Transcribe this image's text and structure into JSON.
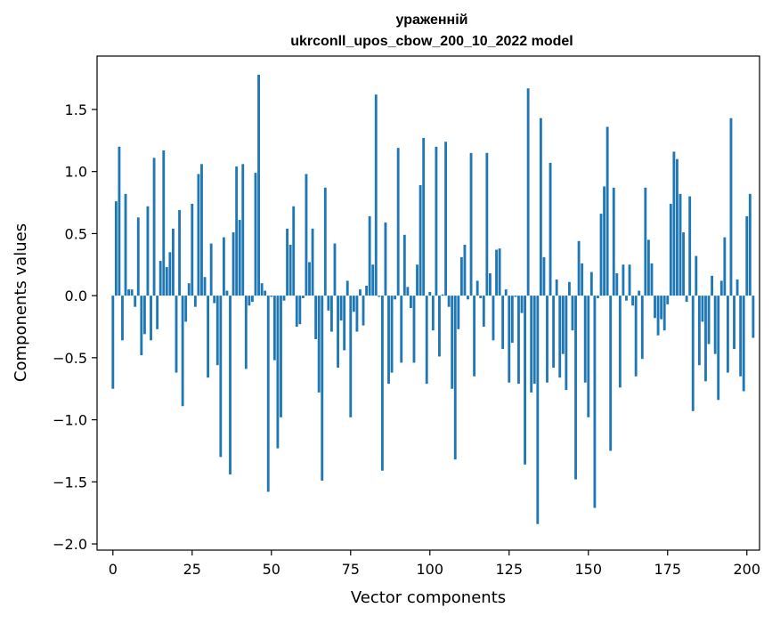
{
  "chart_data": {
    "type": "bar",
    "title": "ураженній",
    "subtitle": "ukrconll_upos_cbow_200_10_2022 model",
    "xlabel": "Vector components",
    "ylabel": "Components values",
    "xlim": [
      -5,
      204
    ],
    "ylim": [
      -2.05,
      1.93
    ],
    "x_ticks": [
      0,
      25,
      50,
      75,
      100,
      125,
      150,
      175,
      200
    ],
    "y_ticks": [
      -2.0,
      -1.5,
      -1.0,
      -0.5,
      0.0,
      0.5,
      1.0,
      1.5
    ],
    "y_tick_labels": [
      "−2.0",
      "−1.5",
      "−1.0",
      "−0.5",
      "0.0",
      "0.5",
      "1.0",
      "1.5"
    ],
    "bar_color": "#1f77b4",
    "grid": false,
    "values": [
      -0.75,
      0.76,
      1.2,
      -0.36,
      0.82,
      0.05,
      0.05,
      -0.09,
      0.63,
      -0.48,
      -0.31,
      0.72,
      -0.36,
      1.11,
      -0.27,
      0.28,
      1.17,
      0.23,
      0.35,
      0.54,
      -0.62,
      0.69,
      -0.89,
      -0.21,
      0.1,
      0.74,
      -0.09,
      0.98,
      1.06,
      0.15,
      -0.66,
      0.42,
      -0.06,
      -0.56,
      -1.3,
      0.47,
      0.04,
      -1.44,
      0.51,
      1.04,
      0.61,
      1.06,
      -0.59,
      -0.08,
      -0.05,
      0.99,
      1.78,
      0.1,
      0.04,
      -1.58,
      -0.01,
      -0.52,
      -1.23,
      -0.98,
      -0.04,
      0.54,
      0.41,
      0.72,
      -0.25,
      -0.23,
      -0.02,
      0.98,
      0.27,
      0.54,
      -0.35,
      -0.78,
      -1.49,
      0.87,
      -0.12,
      -0.29,
      0.42,
      -0.58,
      -0.2,
      -0.44,
      0.12,
      -0.98,
      -0.13,
      -0.29,
      0.05,
      -0.24,
      0.08,
      0.64,
      0.25,
      1.62,
      -0.01,
      -1.41,
      0.59,
      -0.71,
      -0.62,
      -0.03,
      1.19,
      -0.54,
      0.49,
      0.07,
      -0.1,
      -0.54,
      0.25,
      0.89,
      1.27,
      -0.71,
      0.03,
      -0.28,
      1.2,
      -0.49,
      0.01,
      1.24,
      -0.09,
      -0.75,
      -1.32,
      -0.27,
      0.31,
      0.41,
      -0.03,
      1.15,
      -0.65,
      0.12,
      -0.02,
      -0.25,
      1.15,
      0.18,
      -0.36,
      0.37,
      0.38,
      -0.43,
      0.05,
      -0.7,
      -0.38,
      -0.01,
      -0.71,
      -0.14,
      -1.36,
      1.67,
      -0.78,
      -0.71,
      -1.84,
      1.43,
      0.31,
      -0.7,
      1.07,
      -0.58,
      0.13,
      -0.66,
      -0.47,
      -0.76,
      0.11,
      -0.28,
      -1.48,
      0.44,
      0.26,
      -0.7,
      -0.98,
      0.19,
      -1.71,
      -0.02,
      0.66,
      0.88,
      1.36,
      -1.25,
      0.87,
      0.18,
      -0.74,
      0.25,
      -0.04,
      0.25,
      -0.08,
      -0.65,
      0.04,
      -0.51,
      0.87,
      0.45,
      0.26,
      -0.18,
      -0.32,
      -0.19,
      -0.28,
      -0.07,
      0.74,
      1.16,
      1.1,
      0.82,
      0.51,
      -0.05,
      0.8,
      -0.93,
      0.32,
      -0.56,
      -0.21,
      -0.69,
      -0.39,
      0.16,
      -0.47,
      -0.84,
      0.12,
      0.47,
      -0.62,
      1.43,
      -0.43,
      0.13,
      -0.65,
      -0.77,
      0.64,
      0.82,
      -0.34
    ]
  }
}
